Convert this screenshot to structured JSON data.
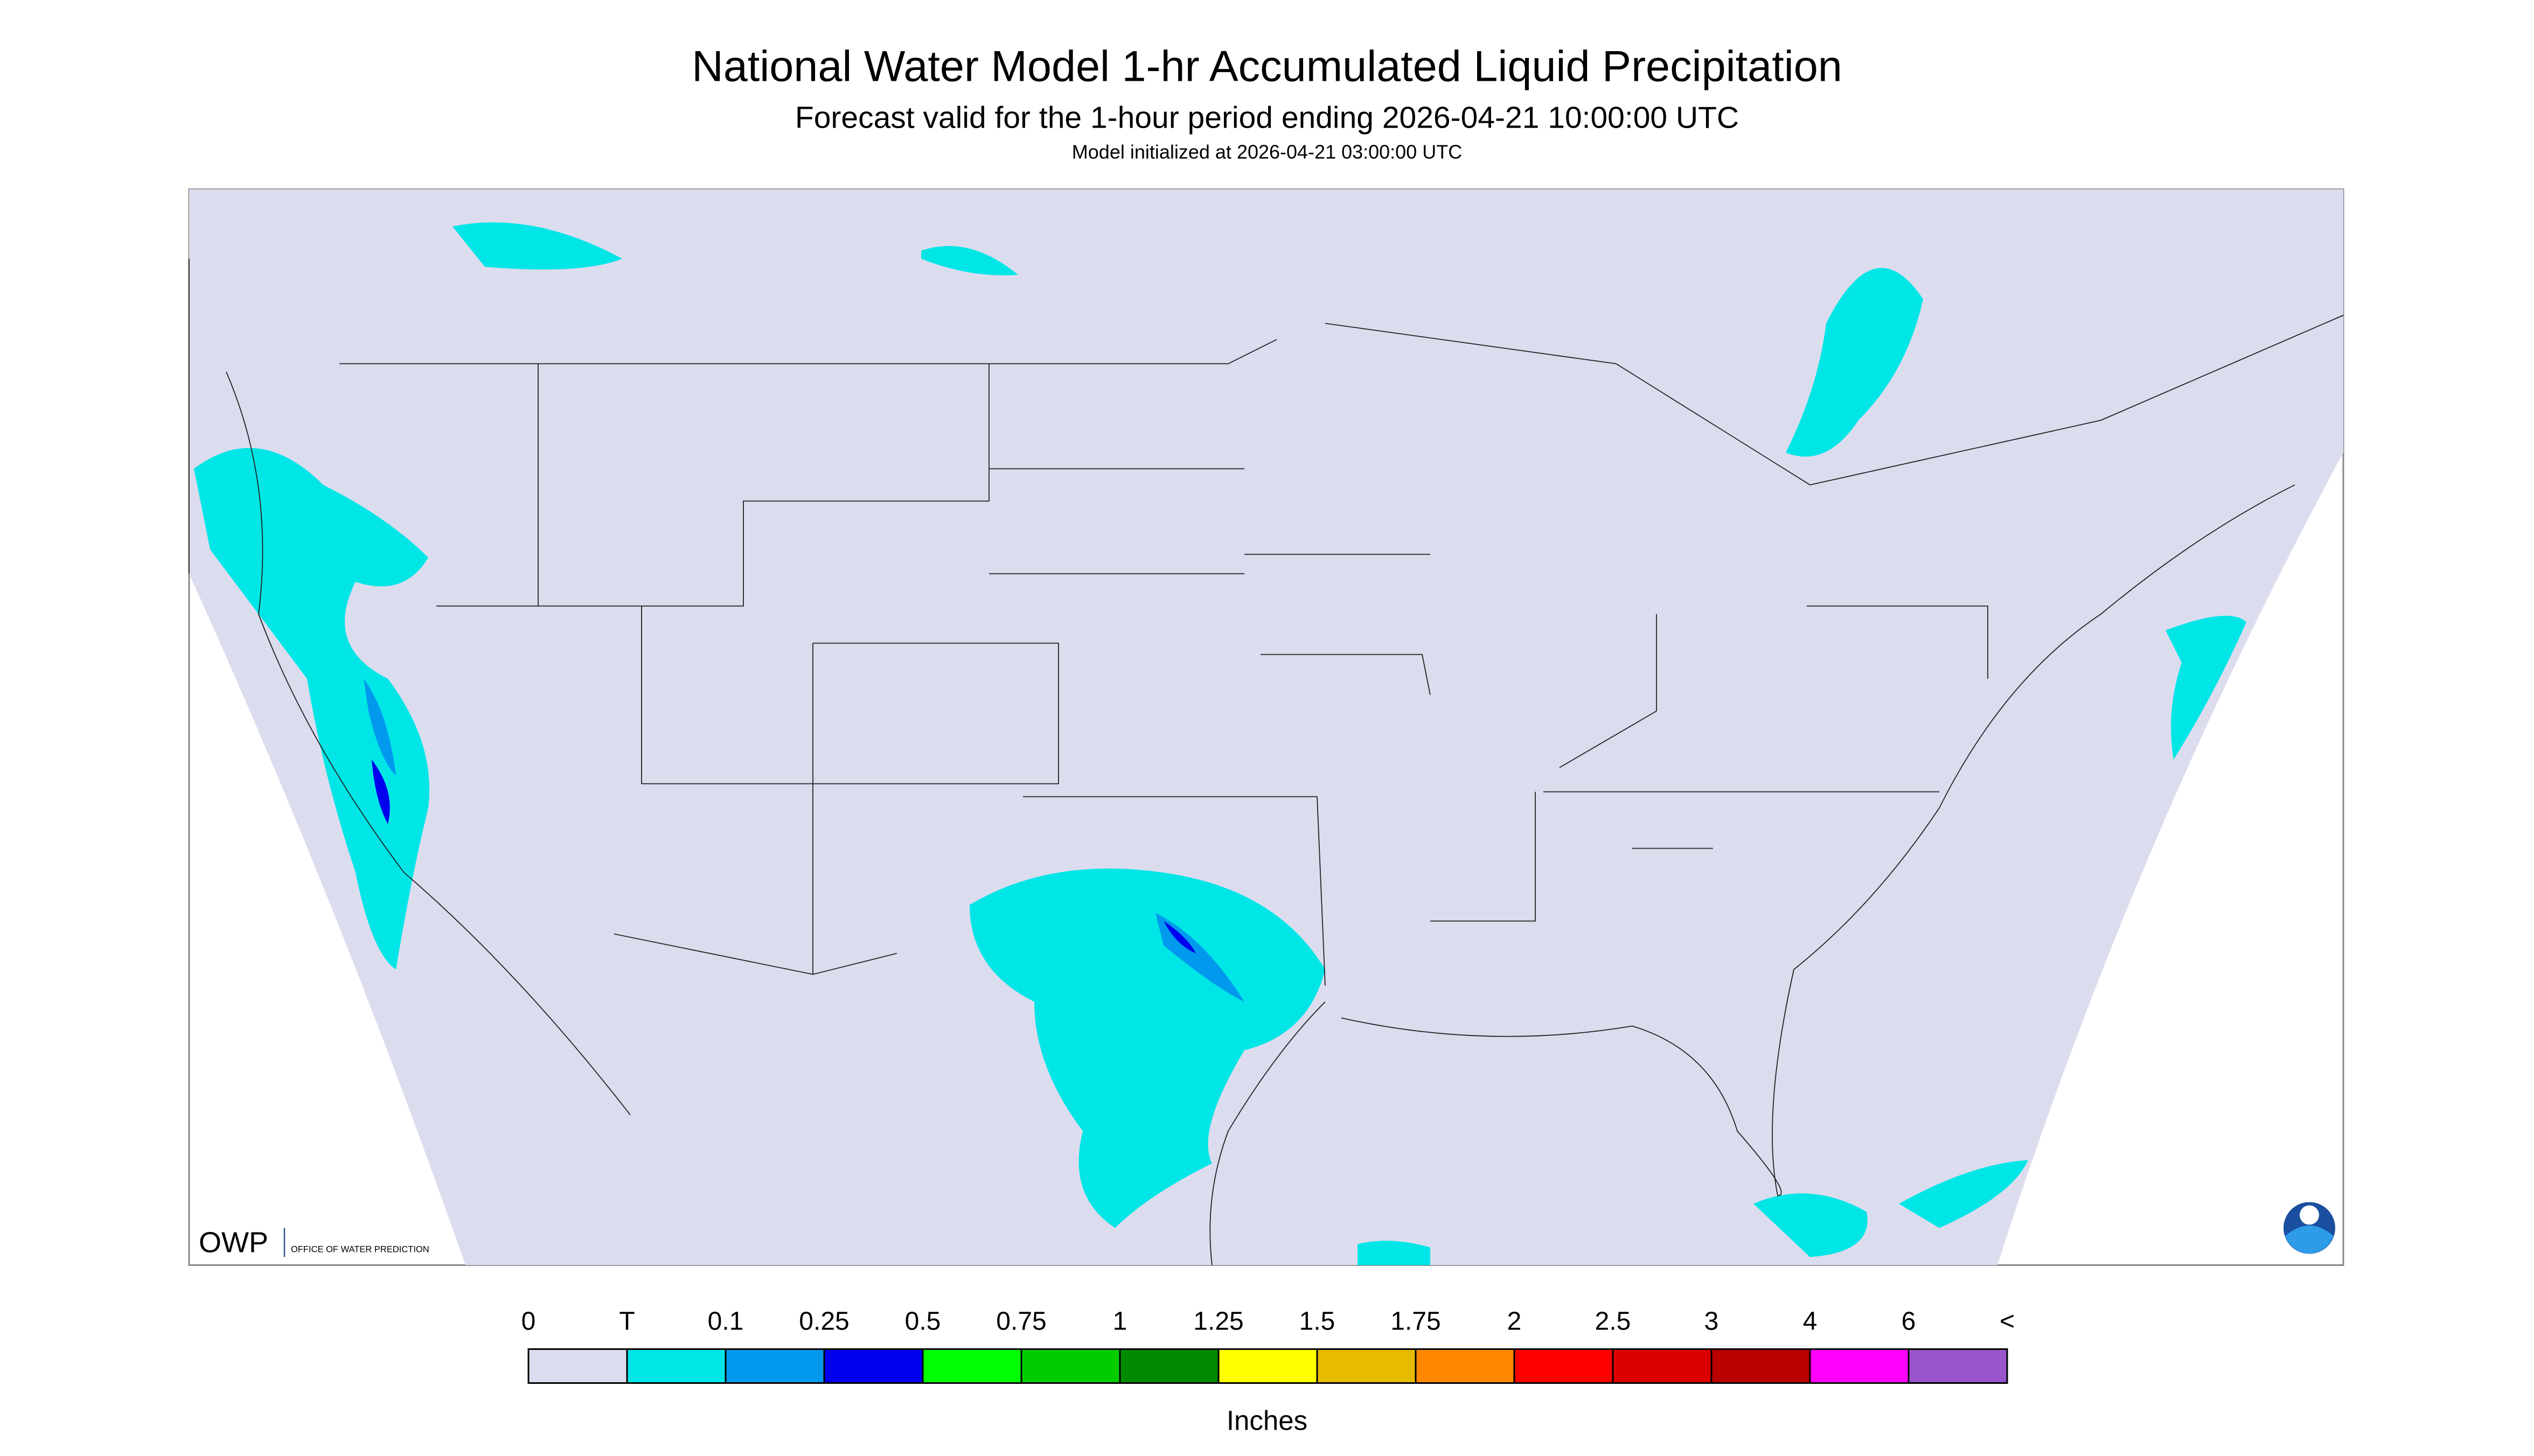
{
  "header": {
    "title": "National Water Model 1-hr Accumulated Liquid Precipitation",
    "subtitle": "Forecast valid for the 1-hour period ending 2026-04-21 10:00:00 UTC",
    "init": "Model initialized at 2026-04-21 03:00:00 UTC"
  },
  "legend": {
    "labels": [
      "0",
      "T",
      "0.1",
      "0.25",
      "0.5",
      "0.75",
      "1",
      "1.25",
      "1.5",
      "1.75",
      "2",
      "2.5",
      "3",
      "4",
      "6",
      "<"
    ],
    "colors": [
      "#dcdcef",
      "#00e6e6",
      "#0099ee",
      "#0000ee",
      "#00ff00",
      "#00cc00",
      "#008a00",
      "#ffff00",
      "#e6bb00",
      "#ff8800",
      "#ff0000",
      "#dd0000",
      "#bb0000",
      "#ff00ff",
      "#9955cc"
    ],
    "unit": "Inches"
  },
  "logo": {
    "abbr": "OWP",
    "name": "OFFICE OF WATER PREDICTION"
  }
}
